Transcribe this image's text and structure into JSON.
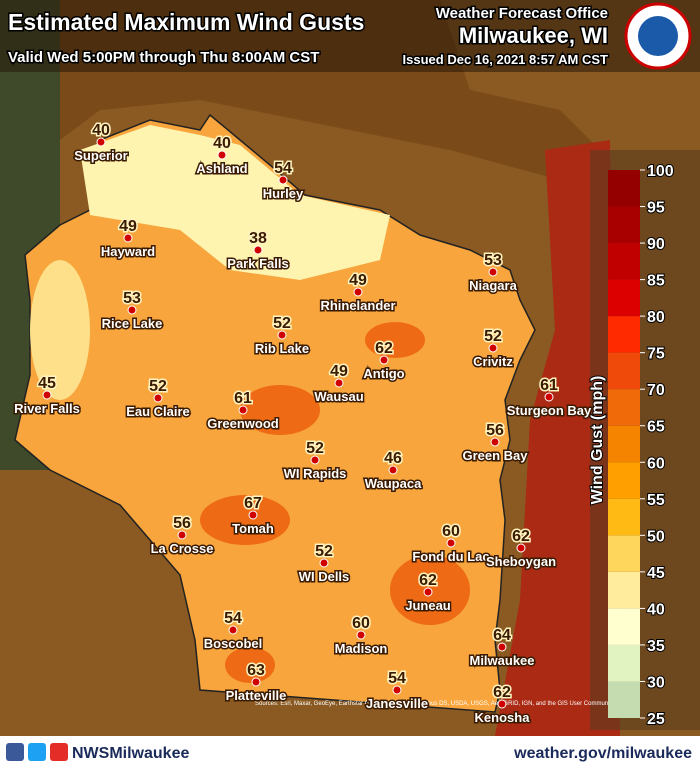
{
  "header": {
    "title": "Estimated Maximum Wind Gusts",
    "subtitle": "Valid Wed 5:00PM through Thu 8:00AM CST",
    "office_label": "Weather Forecast Office",
    "office": "Milwaukee, WI",
    "issued": "Issued Dec 16, 2021 8:57 AM CST"
  },
  "cities": [
    {
      "name": "Superior",
      "value": 40
    },
    {
      "name": "Ashland",
      "value": 40
    },
    {
      "name": "Hurley",
      "value": 54
    },
    {
      "name": "Hayward",
      "value": 49
    },
    {
      "name": "Park Falls",
      "value": 38
    },
    {
      "name": "Rhinelander",
      "value": 49
    },
    {
      "name": "Niagara",
      "value": 53
    },
    {
      "name": "Rice Lake",
      "value": 53
    },
    {
      "name": "Rib Lake",
      "value": 52
    },
    {
      "name": "Crivitz",
      "value": 52
    },
    {
      "name": "Antigo",
      "value": 62
    },
    {
      "name": "River Falls",
      "value": 45
    },
    {
      "name": "Eau Claire",
      "value": 52
    },
    {
      "name": "Greenwood",
      "value": 61
    },
    {
      "name": "Wausau",
      "value": 49
    },
    {
      "name": "Sturgeon Bay",
      "value": 61
    },
    {
      "name": "Green Bay",
      "value": 56
    },
    {
      "name": "WI Rapids",
      "value": 52
    },
    {
      "name": "Waupaca",
      "value": 46
    },
    {
      "name": "Tomah",
      "value": 67
    },
    {
      "name": "La Crosse",
      "value": 56
    },
    {
      "name": "Fond du Lac",
      "value": 60
    },
    {
      "name": "Sheboygan",
      "value": 62
    },
    {
      "name": "WI Dells",
      "value": 52
    },
    {
      "name": "Juneau",
      "value": 62
    },
    {
      "name": "Boscobel",
      "value": 54
    },
    {
      "name": "Madison",
      "value": 60
    },
    {
      "name": "Milwaukee",
      "value": 64
    },
    {
      "name": "Platteville",
      "value": 63
    },
    {
      "name": "Janesville",
      "value": 54
    },
    {
      "name": "Kenosha",
      "value": 62
    }
  ],
  "legend": {
    "title": "Wind Gust (mph)",
    "ticks": [
      25,
      30,
      35,
      40,
      45,
      50,
      55,
      60,
      65,
      70,
      75,
      80,
      85,
      90,
      95,
      100
    ],
    "colors": [
      "#c5dcb0",
      "#e2f3c2",
      "#ffffcf",
      "#ffec9c",
      "#ffd65c",
      "#ffbb14",
      "#ffa000",
      "#f58400",
      "#f06a0a",
      "#f04a0a",
      "#ff2a00",
      "#dc0000",
      "#c00000",
      "#a80000",
      "#940000"
    ]
  },
  "footer": {
    "social": "NWSMilwaukee",
    "url": "weather.gov/milwaukee",
    "sources": "Sources: Esri, Maxar, GeoEye, Earthstar Geographics, CNES/Airbus DS, USDA, USGS, AeroGRID, IGN, and the GIS User Community"
  }
}
